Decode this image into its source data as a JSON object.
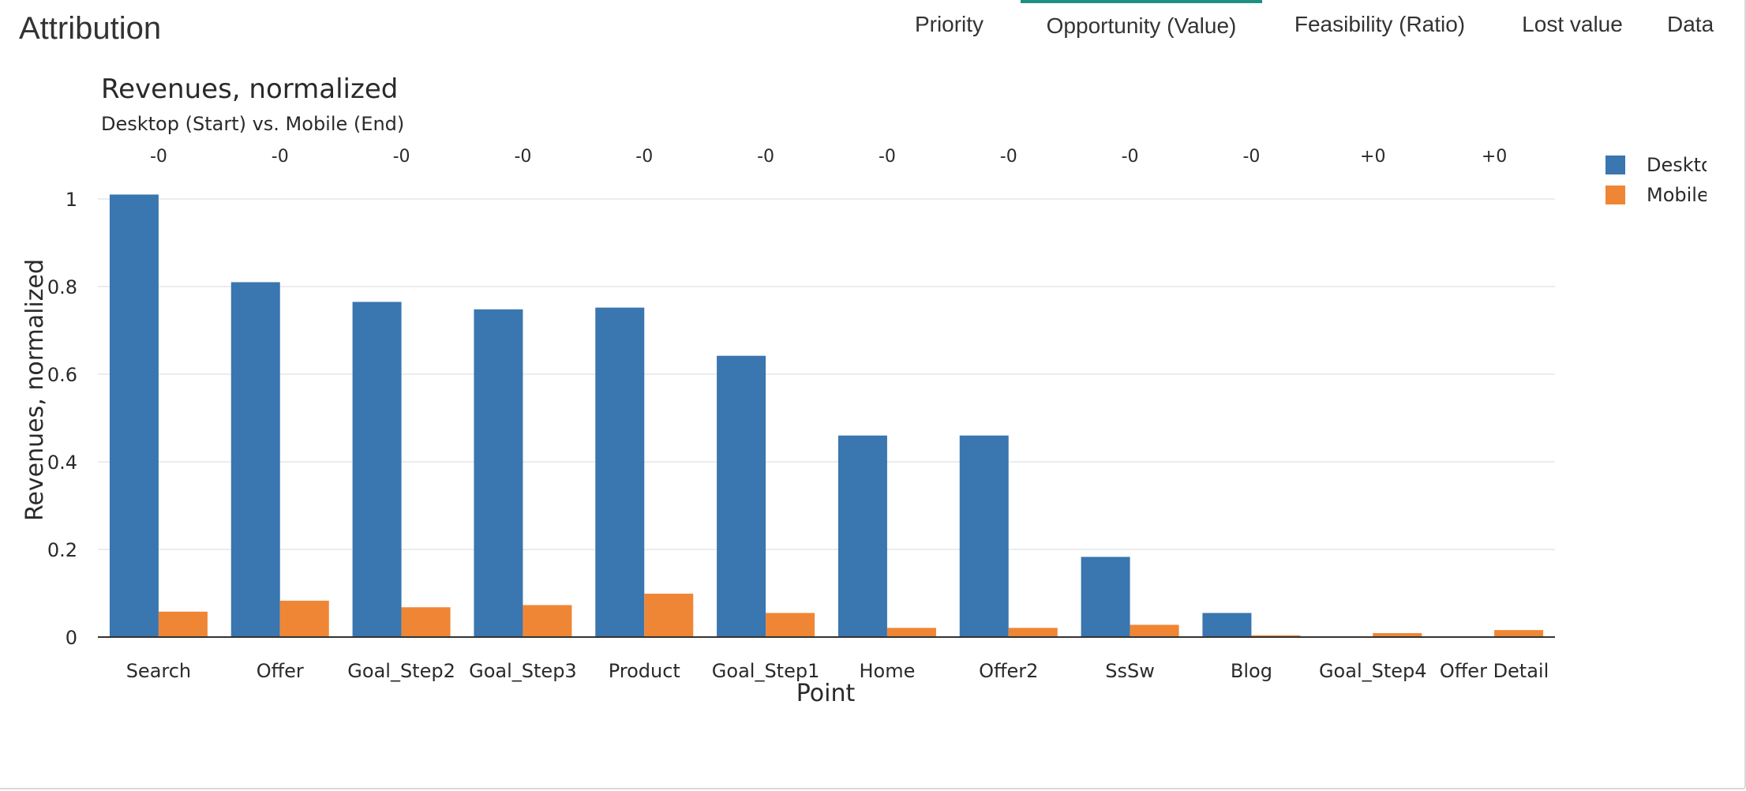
{
  "header": {
    "title": "Attribution",
    "tabs": [
      {
        "label": "Priority",
        "active": false
      },
      {
        "label": "Opportunity (Value)",
        "active": true
      },
      {
        "label": "Feasibility (Ratio)",
        "active": false
      },
      {
        "label": "Lost value",
        "active": false
      },
      {
        "label": "Data",
        "active": false
      }
    ]
  },
  "chart_data": {
    "type": "bar",
    "title": "Revenues, normalized",
    "subtitle": "Desktop (Start) vs. Mobile (End)",
    "xlabel": "Point",
    "ylabel": "Revenues, normalized",
    "ylim": [
      0,
      1.05
    ],
    "yticks": [
      0,
      0.2,
      0.4,
      0.6,
      0.8,
      1
    ],
    "ytick_labels": [
      "0",
      "0.2",
      "0.4",
      "0.6",
      "0.8",
      "1"
    ],
    "grid": true,
    "legend_position": "top-right",
    "categories": [
      "Search",
      "Offer",
      "Goal_Step2",
      "Goal_Step3",
      "Product",
      "Goal_Step1",
      "Home",
      "Offer2",
      "SsSw",
      "Blog",
      "Goal_Step4",
      "Offer Detail"
    ],
    "annotations": [
      "-0",
      "-0",
      "-0",
      "-0",
      "-0",
      "-0",
      "-0",
      "-0",
      "-0",
      "-0",
      "+0",
      "+0"
    ],
    "series": [
      {
        "name": "Deskto",
        "color": "#3a76af",
        "values": [
          1.01,
          0.81,
          0.765,
          0.748,
          0.752,
          0.642,
          0.46,
          0.46,
          0.183,
          0.055,
          0,
          0
        ]
      },
      {
        "name": "Mobile",
        "color": "#ef8636",
        "values": [
          0.058,
          0.083,
          0.068,
          0.073,
          0.099,
          0.055,
          0.021,
          0.021,
          0.028,
          0.004,
          0.009,
          0.016
        ]
      }
    ]
  }
}
